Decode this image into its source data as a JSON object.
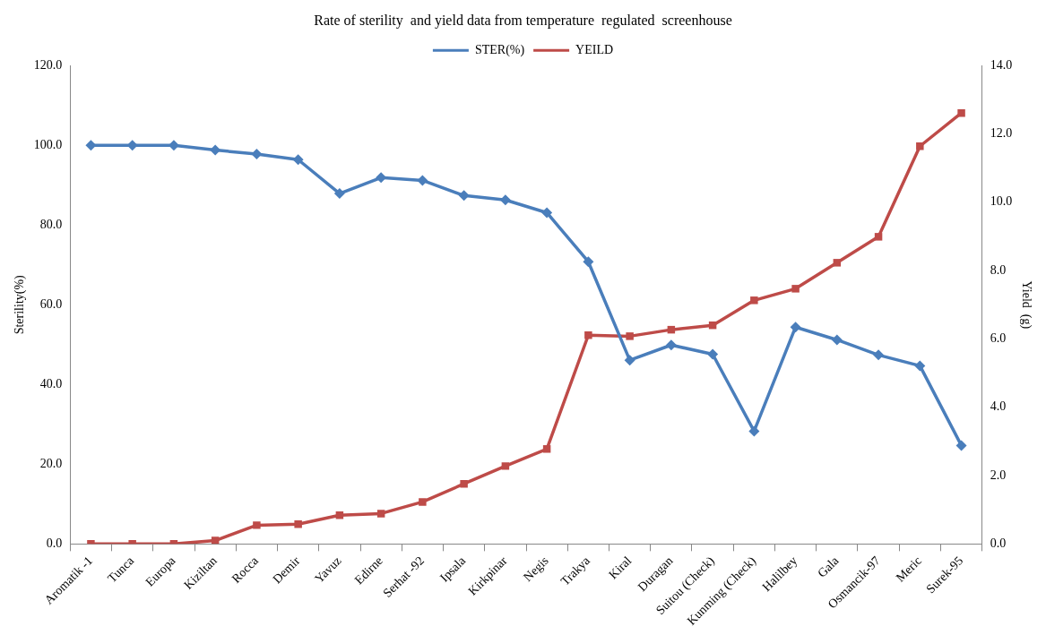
{
  "chart_data": {
    "type": "line",
    "title": "Rate of sterility  and yield data from temperature  regulated  screenhouse",
    "ylabel": "Sterility(%)",
    "y2label": "Yield  (g)",
    "categories": [
      "Aromatik -1",
      "Tunca",
      "Europa",
      "Kiziltan",
      "Rocca",
      "Demir",
      "Yavuz",
      "Edirne",
      "Serhat -92",
      "Ipsala",
      "Kirkpinar",
      "Negis",
      "Trakya",
      "Kiral",
      "Duragan",
      "Suitou (Check)",
      "Kunming (Check)",
      "Halilbey",
      "Gala",
      "Osmancik-97",
      "Meric",
      "Surek-95"
    ],
    "series": [
      {
        "name": "STER(%)",
        "color": "#4a7ebb",
        "marker": "diamond",
        "values": [
          100,
          100,
          100,
          98.8,
          97.8,
          96.4,
          87.9,
          91.9,
          91.2,
          87.4,
          86.3,
          83.1,
          70.8,
          46.1,
          49.9,
          47.6,
          28.3,
          54.4,
          51.2,
          47.4,
          44.7,
          24.7
        ]
      },
      {
        "name": "YEILD",
        "color": "#be4b48",
        "marker": "square",
        "axis": "y2",
        "values": [
          0,
          0,
          0,
          0.1,
          0.55,
          0.58,
          0.84,
          0.89,
          1.23,
          1.76,
          2.28,
          2.78,
          6.11,
          6.08,
          6.27,
          6.4,
          7.13,
          7.47,
          8.23,
          8.99,
          11.64,
          12.61
        ]
      }
    ],
    "ylim": [
      0,
      120
    ],
    "yticks": [
      {
        "value": 0,
        "label": "0.0"
      },
      {
        "value": 20,
        "label": "20.0"
      },
      {
        "value": 40,
        "label": "40.0"
      },
      {
        "value": 60,
        "label": "60.0"
      },
      {
        "value": 80,
        "label": "80.0"
      },
      {
        "value": 100,
        "label": "100.0"
      },
      {
        "value": 120,
        "label": "120.0"
      }
    ],
    "y2lim": [
      0,
      14
    ],
    "y2ticks": [
      {
        "value": 0,
        "label": "0.0"
      },
      {
        "value": 2,
        "label": "2.0"
      },
      {
        "value": 4,
        "label": "4.0"
      },
      {
        "value": 6,
        "label": "6.0"
      },
      {
        "value": 8,
        "label": "8.0"
      },
      {
        "value": 10,
        "label": "10.0"
      },
      {
        "value": 12,
        "label": "12.0"
      },
      {
        "value": 14,
        "label": "14.0"
      }
    ],
    "grid": false,
    "legend": "top",
    "line_style": "solid"
  }
}
